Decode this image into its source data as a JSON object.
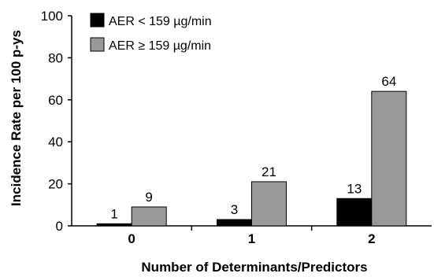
{
  "chart_data": {
    "type": "bar",
    "categories": [
      "0",
      "1",
      "2"
    ],
    "series": [
      {
        "name": "AER < 159 µg/min",
        "values": [
          1,
          3,
          13
        ],
        "color": "#000000"
      },
      {
        "name": "AER ≥ 159 µg/min",
        "values": [
          9,
          21,
          64
        ],
        "color": "#999999"
      }
    ],
    "data_labels": [
      [
        "1",
        "3",
        "13"
      ],
      [
        "9",
        "21",
        "64"
      ]
    ],
    "xlabel": "Number of Determinants/Predictors",
    "ylabel": "Incidence Rate per 100 p-ys",
    "ylim": [
      0,
      100
    ],
    "yticks": [
      "0",
      "20",
      "40",
      "60",
      "80",
      "100"
    ],
    "grid": false,
    "legend_position": "top-left"
  }
}
